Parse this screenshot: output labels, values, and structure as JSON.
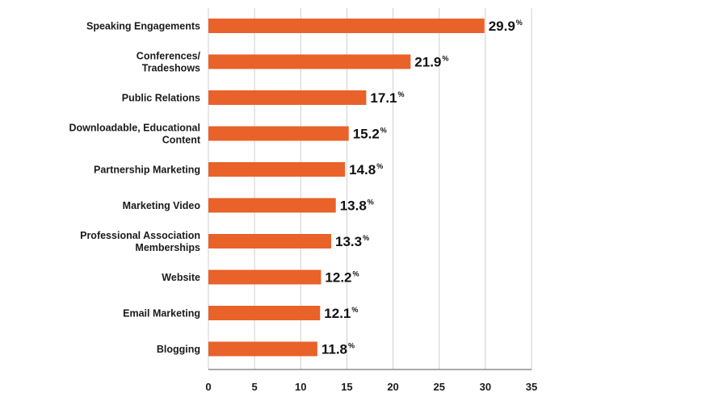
{
  "chart_data": {
    "type": "bar",
    "orientation": "horizontal",
    "categories": [
      [
        "Speaking Engagements"
      ],
      [
        "Conferences/",
        "Tradeshows"
      ],
      [
        "Public Relations"
      ],
      [
        "Downloadable, Educational",
        "Content"
      ],
      [
        "Partnership Marketing"
      ],
      [
        "Marketing Video"
      ],
      [
        "Professional Association",
        "Memberships"
      ],
      [
        "Website"
      ],
      [
        "Email Marketing"
      ],
      [
        "Blogging"
      ]
    ],
    "values": [
      29.9,
      21.9,
      17.1,
      15.2,
      14.8,
      13.8,
      13.3,
      12.2,
      12.1,
      11.8
    ],
    "value_labels": [
      "29.9",
      "21.9",
      "17.1",
      "15.2",
      "14.8",
      "13.8",
      "13.3",
      "12.2",
      "12.1",
      "11.8"
    ],
    "value_suffix": "%",
    "xlim": [
      0,
      35
    ],
    "xticks": [
      0,
      5,
      10,
      15,
      20,
      25,
      30,
      35
    ],
    "grid": true,
    "bar_color": "#e8622a"
  }
}
